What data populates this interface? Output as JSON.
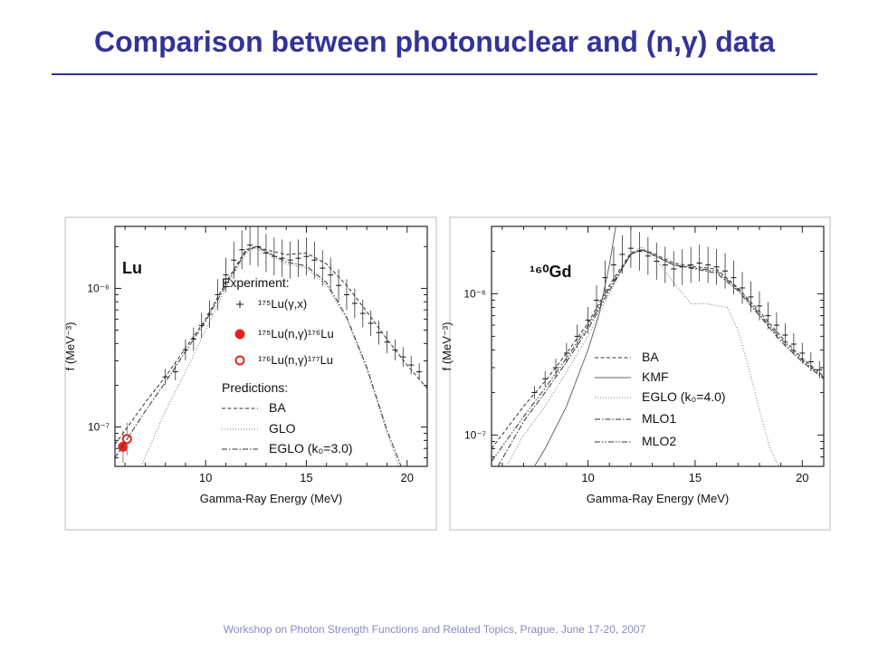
{
  "slide": {
    "title": "Comparison between photonuclear and (n,γ) data",
    "footer": "Workshop on Photon Strength Functions and Related Topics, Prague, June 17-20, 2007"
  },
  "colors": {
    "title": "#333399",
    "experiment_red": "#e8231f",
    "footer": "#8a8ac0"
  },
  "chart_data": [
    {
      "type": "scatter",
      "panel_label": "Lu",
      "xlabel": "Gamma-Ray Energy (MeV)",
      "ylabel": "f (MeV⁻³)",
      "xlim": [
        5.5,
        21
      ],
      "ylim": [
        5.2e-08,
        2.8e-06
      ],
      "yscale": "log",
      "x_ticks": [
        10,
        15,
        20
      ],
      "y_ticks": [
        {
          "value": 1e-07,
          "label": "10⁻⁷"
        },
        {
          "value": 1e-06,
          "label": "10⁻⁶"
        }
      ],
      "legend": {
        "experiment_title": "Experiment:",
        "predictions_title": "Predictions:",
        "experiment": [
          {
            "label": "¹⁷⁵Lu(γ,x)",
            "marker": "plus"
          },
          {
            "label": "¹⁷⁵Lu(n,γ)¹⁷⁶Lu",
            "marker": "filled-circle"
          },
          {
            "label": "¹⁷⁶Lu(n,γ)¹⁷⁷Lu",
            "marker": "open-circle"
          }
        ],
        "predictions": [
          {
            "label": "BA",
            "style": "dashed"
          },
          {
            "label": "GLO",
            "style": "dotted"
          },
          {
            "label": "EGLO (k₀=3.0)",
            "style": "dashdot"
          }
        ]
      },
      "series": [
        {
          "name": "¹⁷⁵Lu(γ,x)",
          "kind": "points",
          "x": [
            8.0,
            8.5,
            9.0,
            9.4,
            9.8,
            10.2,
            10.6,
            11.0,
            11.4,
            11.8,
            12.2,
            12.6,
            13.0,
            13.4,
            13.8,
            14.2,
            14.6,
            15.0,
            15.4,
            15.8,
            16.2,
            16.6,
            17.0,
            17.4,
            17.8,
            18.2,
            18.6,
            19.0,
            19.4,
            19.8,
            20.2,
            20.6
          ],
          "y": [
            2.3e-07,
            2.5e-07,
            3.6e-07,
            4.3e-07,
            5.4e-07,
            6.5e-07,
            9e-07,
            1.25e-06,
            1.6e-06,
            1.9e-06,
            2.05e-06,
            2e-06,
            1.8e-06,
            1.7e-06,
            1.65e-06,
            1.6e-06,
            1.65e-06,
            1.7e-06,
            1.6e-06,
            1.4e-06,
            1.25e-06,
            1.05e-06,
            9e-07,
            7.8e-07,
            6.6e-07,
            5.6e-07,
            4.8e-07,
            4.1e-07,
            3.6e-07,
            3.2e-07,
            2.8e-07,
            2.5e-07
          ]
        },
        {
          "name": "¹⁷⁵Lu(n,γ)¹⁷⁶Lu",
          "kind": "points",
          "x": [
            5.9
          ],
          "y": [
            7.2e-08
          ]
        },
        {
          "name": "¹⁷⁶Lu(n,γ)¹⁷⁷Lu",
          "kind": "points",
          "x": [
            6.1
          ],
          "y": [
            8.2e-08
          ]
        },
        {
          "name": "BA",
          "kind": "line",
          "style": "dashed",
          "x": [
            5.5,
            7,
            8,
            9,
            10,
            11,
            12,
            12.5,
            13,
            14,
            15,
            16,
            17,
            18,
            19,
            20,
            21
          ],
          "y": [
            7.5e-08,
            1.5e-07,
            2.3e-07,
            3.7e-07,
            6e-07,
            1.1e-06,
            1.9e-06,
            2e-06,
            1.9e-06,
            1.75e-06,
            1.8e-06,
            1.5e-06,
            1.05e-06,
            6.8e-07,
            4.3e-07,
            2.8e-07,
            1.9e-07
          ]
        },
        {
          "name": "GLO",
          "kind": "line",
          "style": "dotted",
          "x": [
            6.8,
            8,
            9,
            10,
            11,
            12,
            12.5,
            13,
            14,
            15,
            16,
            17,
            18,
            19,
            19.6
          ],
          "y": [
            5.2e-08,
            1.3e-07,
            2.5e-07,
            5e-07,
            1e-06,
            1.8e-06,
            1.95e-06,
            1.8e-06,
            1.5e-06,
            1.4e-06,
            1.05e-06,
            6e-07,
            2.6e-07,
            9e-08,
            5.2e-08
          ]
        },
        {
          "name": "EGLO (k₀=3.0)",
          "kind": "line",
          "style": "dashdot",
          "x": [
            5.5,
            7,
            8,
            9,
            10,
            11,
            12,
            12.5,
            13,
            14,
            15,
            16,
            17,
            18,
            19,
            19.7
          ],
          "y": [
            6e-08,
            1.3e-07,
            2.1e-07,
            3.5e-07,
            5.8e-07,
            1.05e-06,
            1.85e-06,
            2e-06,
            1.85e-06,
            1.55e-06,
            1.45e-06,
            1.1e-06,
            6.2e-07,
            2.7e-07,
            9.5e-08,
            5.2e-08
          ]
        }
      ]
    },
    {
      "type": "scatter",
      "panel_label": "¹⁶⁰Gd",
      "xlabel": "Gamma-Ray Energy (MeV)",
      "ylabel": "f (MeV⁻³)",
      "xlim": [
        5.5,
        21
      ],
      "ylim": [
        6e-08,
        3e-06
      ],
      "yscale": "log",
      "x_ticks": [
        10,
        15,
        20
      ],
      "y_ticks": [
        {
          "value": 1e-07,
          "label": "10⁻⁷"
        },
        {
          "value": 1e-06,
          "label": "10⁻⁶"
        }
      ],
      "legend": {
        "predictions": [
          {
            "label": "BA",
            "style": "dashed"
          },
          {
            "label": "KMF",
            "style": "solid"
          },
          {
            "label": "EGLO (k₀=4.0)",
            "style": "dotted"
          },
          {
            "label": "MLO1",
            "style": "dashdot"
          },
          {
            "label": "MLO2",
            "style": "dashdotdot"
          }
        ]
      },
      "series": [
        {
          "name": "¹⁶⁰Gd data",
          "kind": "points",
          "x": [
            7.5,
            8.0,
            8.5,
            9.0,
            9.5,
            10.0,
            10.4,
            10.8,
            11.2,
            11.6,
            12.0,
            12.4,
            12.8,
            13.2,
            13.6,
            14.0,
            14.4,
            14.8,
            15.2,
            15.6,
            16.0,
            16.4,
            16.8,
            17.2,
            17.6,
            18.0,
            18.4,
            18.8,
            19.2,
            19.6,
            20.0,
            20.4,
            20.8
          ],
          "y": [
            2e-07,
            2.5e-07,
            3e-07,
            3.8e-07,
            5e-07,
            6.5e-07,
            9e-07,
            1.3e-06,
            1.6e-06,
            1.9e-06,
            2.1e-06,
            2e-06,
            1.85e-06,
            1.7e-06,
            1.6e-06,
            1.5e-06,
            1.55e-06,
            1.6e-06,
            1.65e-06,
            1.6e-06,
            1.55e-06,
            1.45e-06,
            1.3e-06,
            1.1e-06,
            9.5e-07,
            8.2e-07,
            7e-07,
            6e-07,
            5.1e-07,
            4.4e-07,
            3.8e-07,
            3.3e-07,
            2.9e-07
          ]
        },
        {
          "name": "BA",
          "kind": "line",
          "style": "dashed",
          "x": [
            5.5,
            7,
            8,
            9,
            10,
            11,
            12,
            12.5,
            13,
            14,
            15,
            16,
            17,
            18,
            19,
            20,
            21
          ],
          "y": [
            8e-08,
            1.6e-07,
            2.4e-07,
            3.8e-07,
            6.2e-07,
            1.15e-06,
            1.95e-06,
            2.05e-06,
            1.95e-06,
            1.65e-06,
            1.55e-06,
            1.5e-06,
            1.1e-06,
            7.5e-07,
            5e-07,
            3.5e-07,
            2.6e-07
          ]
        },
        {
          "name": "KMF",
          "kind": "line",
          "style": "solid",
          "x": [
            7.5,
            8,
            9,
            10,
            10.5,
            11,
            11.3
          ],
          "y": [
            6e-08,
            8e-08,
            1.6e-07,
            4e-07,
            7e-07,
            1.6e-06,
            3e-06
          ]
        },
        {
          "name": "EGLO (k₀=4.0)",
          "kind": "line",
          "style": "dotted",
          "x": [
            6.2,
            7,
            8,
            9,
            10,
            11,
            12,
            12.5,
            13,
            14,
            14.8,
            15.5,
            16.5,
            17,
            17.5,
            18,
            18.5,
            18.9
          ],
          "y": [
            6e-08,
            1e-07,
            1.6e-07,
            2.8e-07,
            5e-07,
            1e-06,
            1.95e-06,
            2.15e-06,
            1.9e-06,
            1.2e-06,
            8.5e-07,
            8.5e-07,
            8e-07,
            5.5e-07,
            3e-07,
            1.5e-07,
            8e-08,
            6e-08
          ]
        },
        {
          "name": "MLO1",
          "kind": "line",
          "style": "dashdot",
          "x": [
            5.8,
            7,
            8,
            9,
            10,
            11,
            12,
            12.5,
            13,
            14,
            15,
            16,
            17,
            18,
            19,
            20,
            21
          ],
          "y": [
            6e-08,
            1.25e-07,
            2e-07,
            3.3e-07,
            5.6e-07,
            1.05e-06,
            1.9e-06,
            2.05e-06,
            1.9e-06,
            1.6e-06,
            1.5e-06,
            1.4e-06,
            1.05e-06,
            7e-07,
            4.6e-07,
            3.3e-07,
            2.5e-07
          ]
        },
        {
          "name": "MLO2",
          "kind": "line",
          "style": "dashdotdot",
          "x": [
            5.5,
            7,
            8,
            9,
            10,
            11,
            12,
            12.5,
            13,
            14,
            15,
            16,
            17,
            18,
            19,
            20,
            21
          ],
          "y": [
            6.5e-08,
            1.35e-07,
            2.15e-07,
            3.5e-07,
            5.9e-07,
            1.1e-06,
            1.9e-06,
            2.05e-06,
            1.9e-06,
            1.6e-06,
            1.52e-06,
            1.45e-06,
            1.08e-06,
            7.2e-07,
            4.8e-07,
            3.4e-07,
            2.55e-07
          ]
        }
      ]
    }
  ]
}
